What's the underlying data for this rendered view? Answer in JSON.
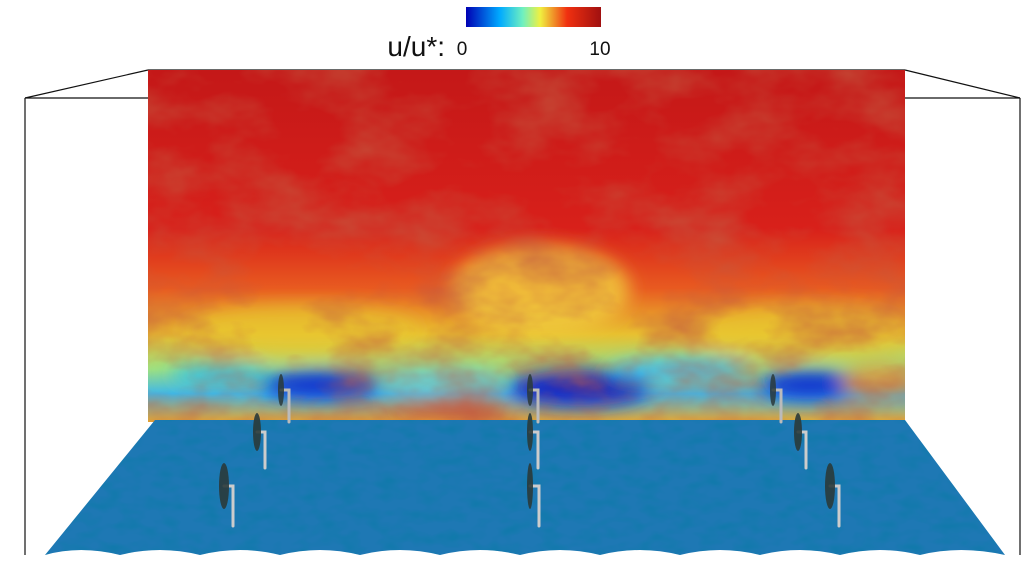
{
  "colorbar": {
    "label": "u/u*:",
    "min_label": "0",
    "max_label": "10"
  }
}
